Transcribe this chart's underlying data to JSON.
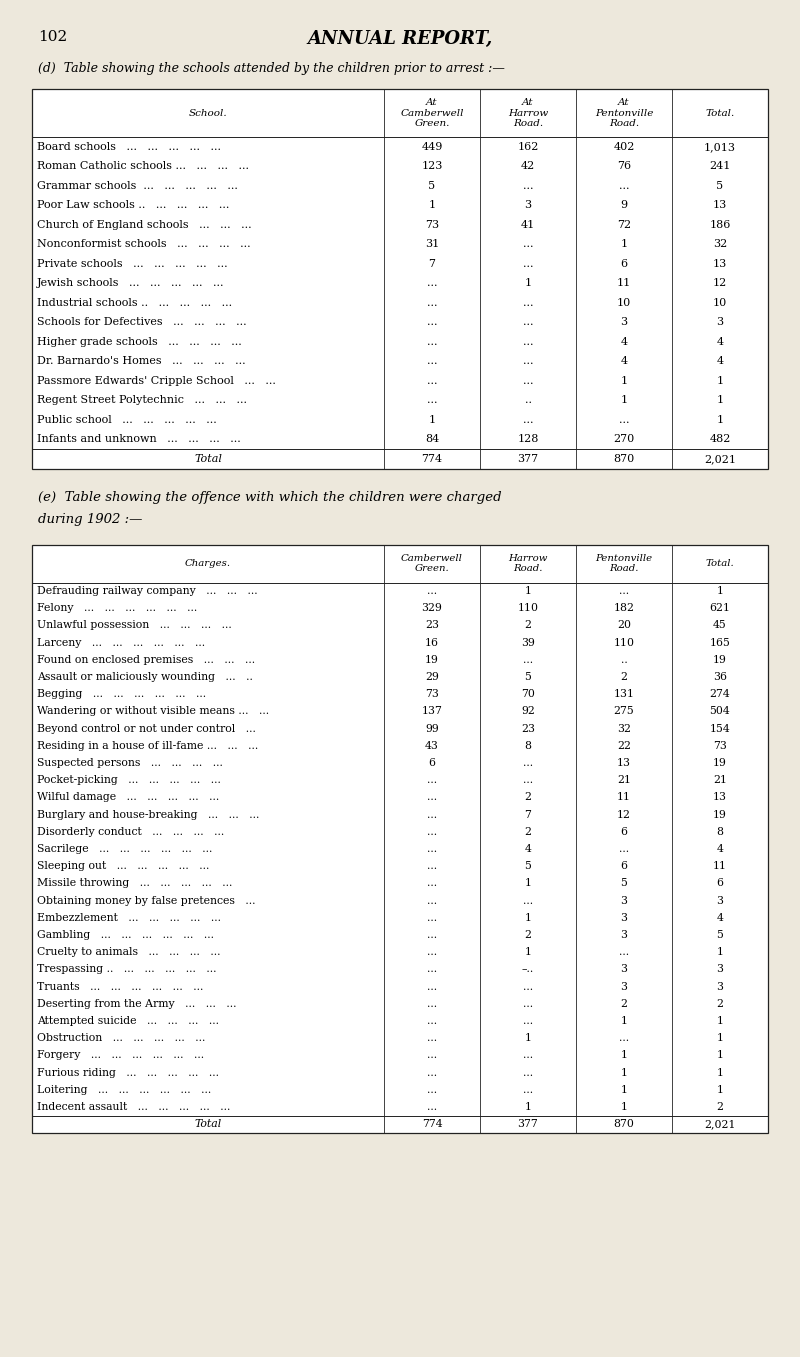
{
  "page_num": "102",
  "page_title": "ANNUAL REPORT,",
  "bg_color": "#ede8dc",
  "table1": {
    "caption": "(d)  Table showing the schools attended by the children prior to arrest :—",
    "col_headers": [
      "School.",
      "At\nCamberwell\nGreen.",
      "At\nHarrow\nRoad.",
      "At\nPentonville\nRoad.",
      "Total."
    ],
    "rows": [
      [
        "Board schools   ...   ...   ...   ...   ...",
        "449",
        "162",
        "402",
        "1,013"
      ],
      [
        "Roman Catholic schools ...   ...   ...   ...",
        "123",
        "42",
        "76",
        "241"
      ],
      [
        "Grammar schools  ...   ...   ...   ...   ...",
        "5",
        "...",
        "...",
        "5"
      ],
      [
        "Poor Law schools ..   ...   ...   ...   ...",
        "1",
        "3",
        "9",
        "13"
      ],
      [
        "Church of England schools   ...   ...   ...",
        "73",
        "41",
        "72",
        "186"
      ],
      [
        "Nonconformist schools   ...   ...   ...   ...",
        "31",
        "...",
        "1",
        "32"
      ],
      [
        "Private schools   ...   ...   ...   ...   ...",
        "7",
        "...",
        "6",
        "13"
      ],
      [
        "Jewish schools   ...   ...   ...   ...   ...",
        "...",
        "1",
        "11",
        "12"
      ],
      [
        "Industrial schools ..   ...   ...   ...   ...",
        "...",
        "...",
        "10",
        "10"
      ],
      [
        "Schools for Defectives   ...   ...   ...   ...",
        "...",
        "...",
        "3",
        "3"
      ],
      [
        "Higher grade schools   ...   ...   ...   ...",
        "...",
        "...",
        "4",
        "4"
      ],
      [
        "Dr. Barnardo's Homes   ...   ...   ...   ...",
        "...",
        "...",
        "4",
        "4"
      ],
      [
        "Passmore Edwards' Cripple School   ...   ...",
        "...",
        "...",
        "1",
        "1"
      ],
      [
        "Regent Street Polytechnic   ...   ...   ...",
        "...",
        "..",
        "1",
        "1"
      ],
      [
        "Public school   ...   ...   ...   ...   ...",
        "1",
        "...",
        "...",
        "1"
      ],
      [
        "Infants and unknown   ...   ...   ...   ...",
        "84",
        "128",
        "270",
        "482"
      ]
    ],
    "total_row": [
      "Total",
      "774",
      "377",
      "870",
      "2,021"
    ]
  },
  "table2": {
    "caption1": "(e)  Table showing the offence with which the children were charged",
    "caption2": "during 1902 :—",
    "col_headers": [
      "Charges.",
      "Camberwell\nGreen.",
      "Harrow\nRoad.",
      "Pentonville\nRoad.",
      "Total."
    ],
    "rows": [
      [
        "Defrauding railway company   ...   ...   ...",
        "...",
        "1",
        "...",
        "1"
      ],
      [
        "Felony   ...   ...   ...   ...   ...   ...",
        "329",
        "110",
        "182",
        "621"
      ],
      [
        "Unlawful possession   ...   ...   ...   ...",
        "23",
        "2",
        "20",
        "45"
      ],
      [
        "Larceny   ...   ...   ...   ...   ...   ...",
        "16",
        "39",
        "110",
        "165"
      ],
      [
        "Found on enclosed premises   ...   ...   ...",
        "19",
        "...",
        "..",
        "19"
      ],
      [
        "Assault or maliciously wounding   ...   ..",
        "29",
        "5",
        "2",
        "36"
      ],
      [
        "Begging   ...   ...   ...   ...   ...   ...",
        "73",
        "70",
        "131",
        "274"
      ],
      [
        "Wandering or without visible means ...   ...",
        "137",
        "92",
        "275",
        "504"
      ],
      [
        "Beyond control or not under control   ...",
        "99",
        "23",
        "32",
        "154"
      ],
      [
        "Residing in a house of ill-fame ...   ...   ...",
        "43",
        "8",
        "22",
        "73"
      ],
      [
        "Suspected persons   ...   ...   ...   ...",
        "6",
        "...",
        "13",
        "19"
      ],
      [
        "Pocket-picking   ...   ...   ...   ...   ...",
        "...",
        "...",
        "21",
        "21"
      ],
      [
        "Wilful damage   ...   ...   ...   ...   ...",
        "...",
        "2",
        "11",
        "13"
      ],
      [
        "Burglary and house-breaking   ...   ...   ...",
        "...",
        "7",
        "12",
        "19"
      ],
      [
        "Disorderly conduct   ...   ...   ...   ...",
        "...",
        "2",
        "6",
        "8"
      ],
      [
        "Sacrilege   ...   ...   ...   ...   ...   ...",
        "...",
        "4",
        "...",
        "4"
      ],
      [
        "Sleeping out   ...   ...   ...   ...   ...",
        "...",
        "5",
        "6",
        "11"
      ],
      [
        "Missile throwing   ...   ...   ...   ...   ...",
        "...",
        "1",
        "5",
        "6"
      ],
      [
        "Obtaining money by false pretences   ...",
        "...",
        "...",
        "3",
        "3"
      ],
      [
        "Embezzlement   ...   ...   ...   ...   ...",
        "...",
        "1",
        "3",
        "4"
      ],
      [
        "Gambling   ...   ...   ...   ...   ...   ...",
        "...",
        "2",
        "3",
        "5"
      ],
      [
        "Cruelty to animals   ...   ...   ...   ...",
        "...",
        "1",
        "...",
        "1"
      ],
      [
        "Trespassing ..   ...   ...   ...   ...   ...",
        "...",
        "–..",
        "3",
        "3"
      ],
      [
        "Truants   ...   ...   ...   ...   ...   ...",
        "...",
        "...",
        "3",
        "3"
      ],
      [
        "Deserting from the Army   ...   ...   ...",
        "...",
        "...",
        "2",
        "2"
      ],
      [
        "Attempted suicide   ...   ...   ...   ...",
        "...",
        "...",
        "1",
        "1"
      ],
      [
        "Obstruction   ...   ...   ...   ...   ...",
        "...",
        "1",
        "...",
        "1"
      ],
      [
        "Forgery   ...   ...   ...   ...   ...   ...",
        "...",
        "...",
        "1",
        "1"
      ],
      [
        "Furious riding   ...   ...   ...   ...   ...",
        "...",
        "...",
        "1",
        "1"
      ],
      [
        "Loitering   ...   ...   ...   ...   ...   ...",
        "...",
        "...",
        "1",
        "1"
      ],
      [
        "Indecent assault   ...   ...   ...   ...   ...",
        "...",
        "1",
        "1",
        "2"
      ]
    ],
    "total_row": [
      "Total",
      "774",
      "377",
      "870",
      "2,021"
    ]
  }
}
